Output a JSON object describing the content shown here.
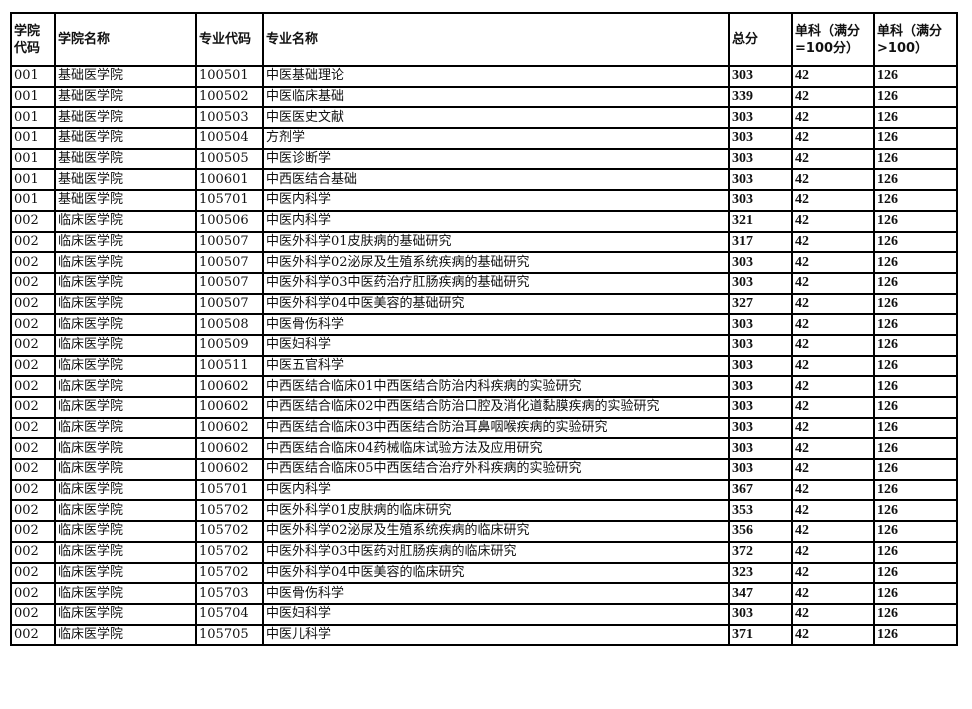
{
  "headers": [
    "学院代码",
    "学院名称",
    "专业代码",
    "专业名称",
    "总分",
    "单科（满分=100分）",
    "单科（满分>100）"
  ],
  "rows": [
    [
      "001",
      "基础医学院",
      "100501",
      "中医基础理论",
      "303",
      "42",
      "126"
    ],
    [
      "001",
      "基础医学院",
      "100502",
      "中医临床基础",
      "339",
      "42",
      "126"
    ],
    [
      "001",
      "基础医学院",
      "100503",
      "中医医史文献",
      "303",
      "42",
      "126"
    ],
    [
      "001",
      "基础医学院",
      "100504",
      "方剂学",
      "303",
      "42",
      "126"
    ],
    [
      "001",
      "基础医学院",
      "100505",
      "中医诊断学",
      "303",
      "42",
      "126"
    ],
    [
      "001",
      "基础医学院",
      "100601",
      "中西医结合基础",
      "303",
      "42",
      "126"
    ],
    [
      "001",
      "基础医学院",
      "105701",
      "中医内科学",
      "303",
      "42",
      "126"
    ],
    [
      "002",
      "临床医学院",
      "100506",
      "中医内科学",
      "321",
      "42",
      "126"
    ],
    [
      "002",
      "临床医学院",
      "100507",
      "中医外科学01皮肤病的基础研究",
      "317",
      "42",
      "126"
    ],
    [
      "002",
      "临床医学院",
      "100507",
      "中医外科学02泌尿及生殖系统疾病的基础研究",
      "303",
      "42",
      "126"
    ],
    [
      "002",
      "临床医学院",
      "100507",
      "中医外科学03中医药治疗肛肠疾病的基础研究",
      "303",
      "42",
      "126"
    ],
    [
      "002",
      "临床医学院",
      "100507",
      "中医外科学04中医美容的基础研究",
      "327",
      "42",
      "126"
    ],
    [
      "002",
      "临床医学院",
      "100508",
      "中医骨伤科学",
      "303",
      "42",
      "126"
    ],
    [
      "002",
      "临床医学院",
      "100509",
      "中医妇科学",
      "303",
      "42",
      "126"
    ],
    [
      "002",
      "临床医学院",
      "100511",
      "中医五官科学",
      "303",
      "42",
      "126"
    ],
    [
      "002",
      "临床医学院",
      "100602",
      "中西医结合临床01中西医结合防治内科疾病的实验研究",
      "303",
      "42",
      "126"
    ],
    [
      "002",
      "临床医学院",
      "100602",
      "中西医结合临床02中西医结合防治口腔及消化道黏膜疾病的实验研究",
      "303",
      "42",
      "126"
    ],
    [
      "002",
      "临床医学院",
      "100602",
      "中西医结合临床03中西医结合防治耳鼻咽喉疾病的实验研究",
      "303",
      "42",
      "126"
    ],
    [
      "002",
      "临床医学院",
      "100602",
      "中西医结合临床04药械临床试验方法及应用研究",
      "303",
      "42",
      "126"
    ],
    [
      "002",
      "临床医学院",
      "100602",
      "中西医结合临床05中西医结合治疗外科疾病的实验研究",
      "303",
      "42",
      "126"
    ],
    [
      "002",
      "临床医学院",
      "105701",
      "中医内科学",
      "367",
      "42",
      "126"
    ],
    [
      "002",
      "临床医学院",
      "105702",
      "中医外科学01皮肤病的临床研究",
      "353",
      "42",
      "126"
    ],
    [
      "002",
      "临床医学院",
      "105702",
      "中医外科学02泌尿及生殖系统疾病的临床研究",
      "356",
      "42",
      "126"
    ],
    [
      "002",
      "临床医学院",
      "105702",
      "中医外科学03中医药对肛肠疾病的临床研究",
      "372",
      "42",
      "126"
    ],
    [
      "002",
      "临床医学院",
      "105702",
      "中医外科学04中医美容的临床研究",
      "323",
      "42",
      "126"
    ],
    [
      "002",
      "临床医学院",
      "105703",
      "中医骨伤科学",
      "347",
      "42",
      "126"
    ],
    [
      "002",
      "临床医学院",
      "105704",
      "中医妇科学",
      "303",
      "42",
      "126"
    ],
    [
      "002",
      "临床医学院",
      "105705",
      "中医儿科学",
      "371",
      "42",
      "126"
    ]
  ]
}
